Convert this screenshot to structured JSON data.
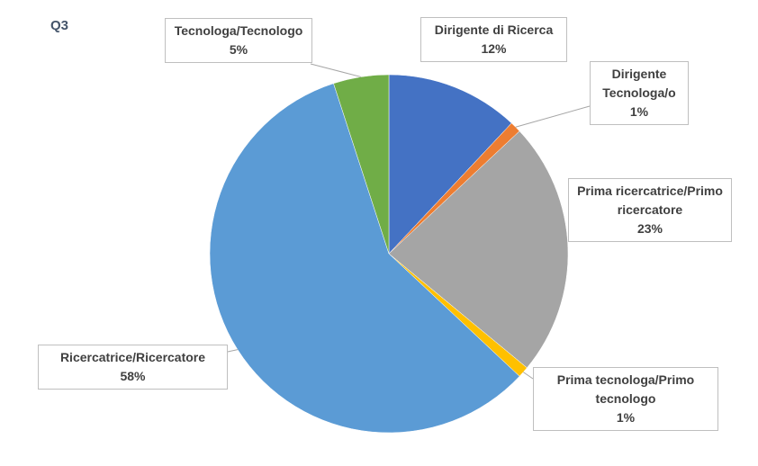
{
  "chart_data": {
    "type": "pie",
    "title": "Q3",
    "categories": [
      "Dirigente di Ricerca",
      "Dirigente Tecnologa/o",
      "Prima ricercatrice/Primo ricercatore",
      "Prima tecnologa/Primo tecnologo",
      "Ricercatrice/Ricercatore",
      "Tecnologa/Tecnologo"
    ],
    "values": [
      12,
      1,
      23,
      1,
      58,
      5
    ],
    "value_labels": [
      "12%",
      "1%",
      "23%",
      "1%",
      "58%",
      "5%"
    ],
    "colors": [
      "#4472c4",
      "#ed7d31",
      "#a5a5a5",
      "#ffc000",
      "#5b9bd5",
      "#70ad47"
    ]
  }
}
